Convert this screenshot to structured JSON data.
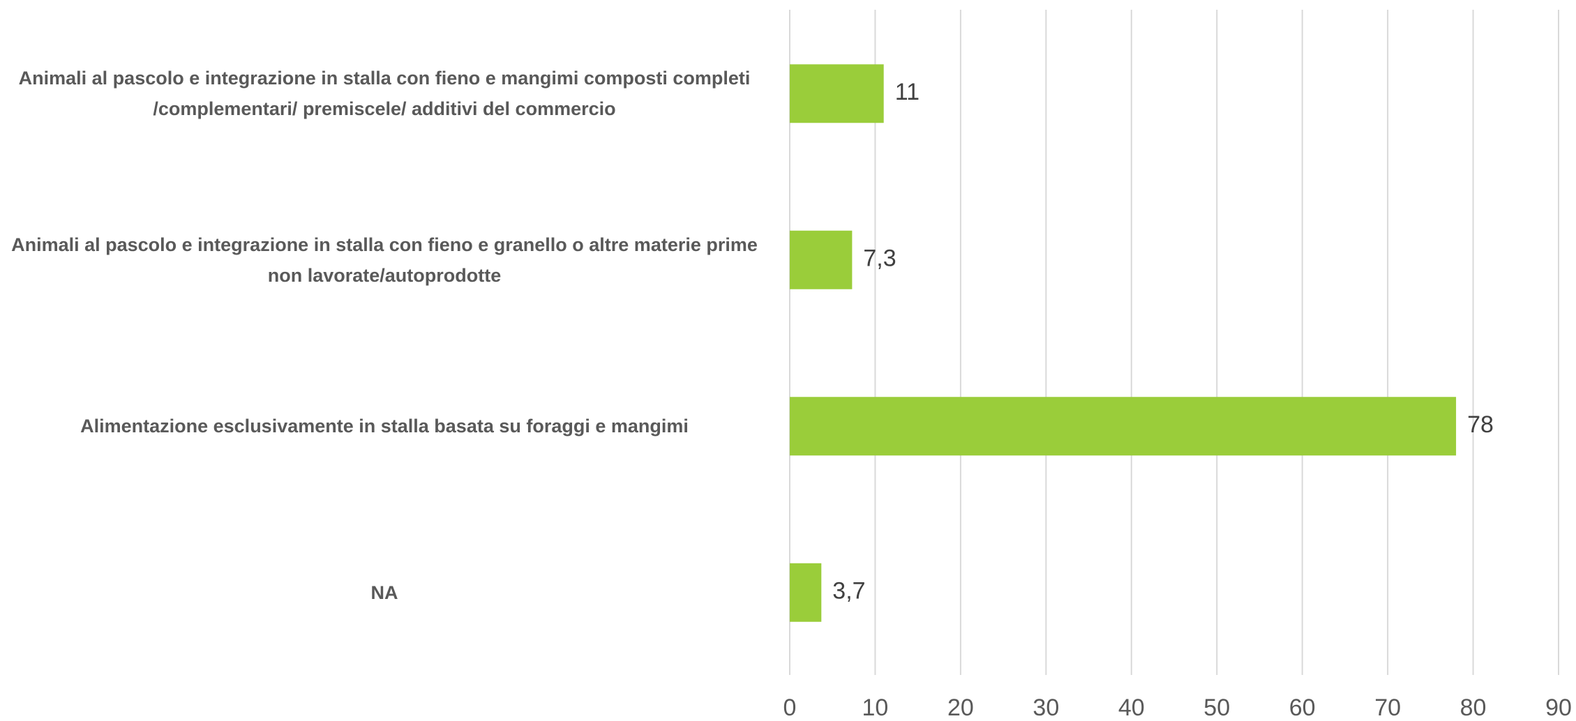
{
  "chart_data": {
    "type": "barh",
    "categories": [
      "Animali al pascolo e integrazione in stalla con fieno e mangimi composti completi /complementari/ premiscele/ additivi del commercio",
      "Animali al pascolo e integrazione in stalla con fieno e granello o altre materie prime non lavorate/autoprodotte",
      "Alimentazione esclusivamente in stalla basata su foraggi e mangimi",
      "NA"
    ],
    "values": [
      11,
      7.3,
      78,
      3.7
    ],
    "value_labels": [
      "11",
      "7,3",
      "78",
      "3,7"
    ],
    "color": "#9acd3a",
    "xlim": [
      0,
      90
    ],
    "xticks": [
      0,
      10,
      20,
      30,
      40,
      50,
      60,
      70,
      80,
      90
    ],
    "grid": true
  }
}
